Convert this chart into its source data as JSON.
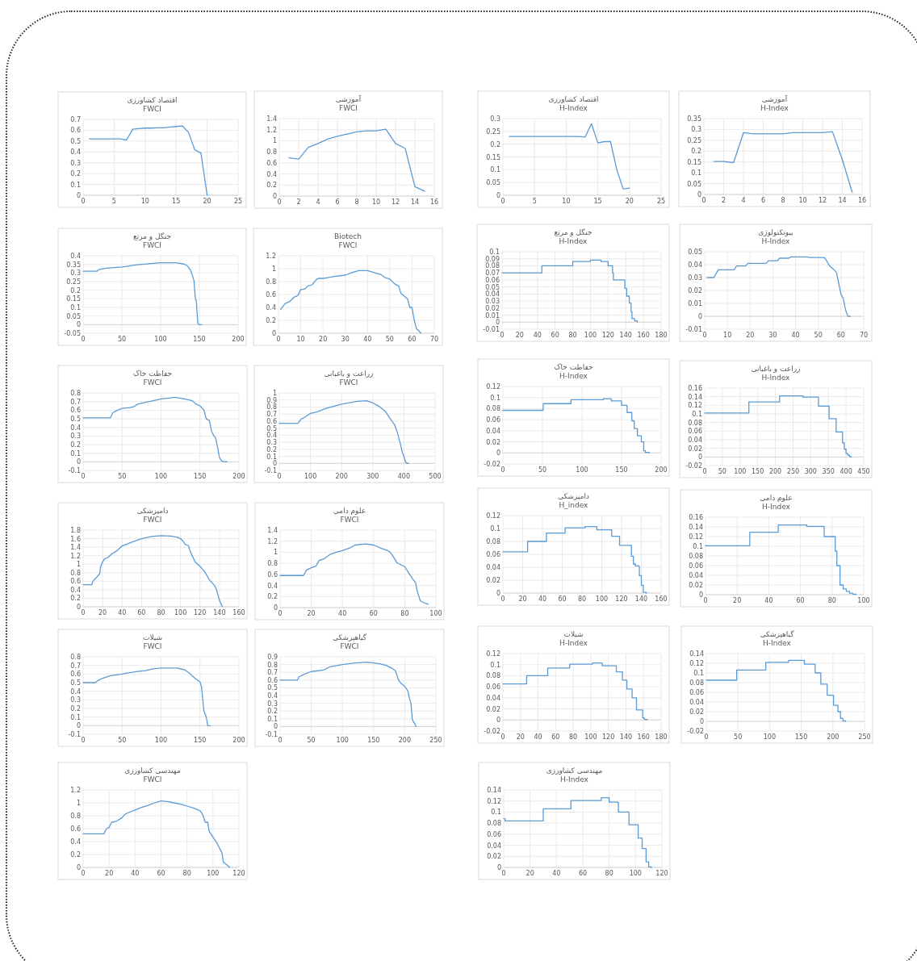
{
  "chart_data": [
    {
      "type": "line",
      "title": "اقتصاد کشاورزی",
      "subtitle": "FWCI",
      "x": [
        1,
        2,
        3,
        4,
        5,
        6,
        7,
        8,
        9,
        10,
        11,
        12,
        13,
        14,
        15,
        16,
        17,
        18,
        19,
        20
      ],
      "series": [
        {
          "color": "#5b9bd5",
          "values": [
            0.52,
            0.52,
            0.52,
            0.52,
            0.52,
            0.52,
            0.51,
            0.61,
            0.615,
            0.62,
            0.62,
            0.622,
            0.622,
            0.63,
            0.635,
            0.64,
            0.58,
            0.42,
            0.39,
            0
          ]
        }
      ],
      "xlim": [
        0,
        25
      ],
      "xticks": [
        0,
        5,
        10,
        15,
        20,
        25
      ],
      "ylim": [
        0,
        0.7
      ],
      "yticks": [
        0,
        0.1,
        0.2,
        0.3,
        0.4,
        0.5,
        0.6,
        0.7
      ],
      "grid": true
    },
    {
      "type": "line",
      "title": "آموزشی",
      "subtitle": "FWCI",
      "x": [
        1,
        2,
        3,
        4,
        5,
        6,
        7,
        8,
        9,
        10,
        11,
        12,
        13,
        14,
        15
      ],
      "series": [
        {
          "color": "#5b9bd5",
          "values": [
            0.69,
            0.67,
            0.88,
            0.95,
            1.03,
            1.08,
            1.12,
            1.16,
            1.18,
            1.18,
            1.21,
            0.95,
            0.86,
            0.17,
            0.09
          ]
        }
      ],
      "xlim": [
        0,
        16
      ],
      "xticks": [
        0,
        2,
        4,
        6,
        8,
        10,
        12,
        14,
        16
      ],
      "ylim": [
        0,
        1.4
      ],
      "yticks": [
        0,
        0.2,
        0.4,
        0.6,
        0.8,
        1,
        1.2,
        1.4
      ],
      "grid": true
    },
    {
      "type": "line",
      "title": "جنگل و مرتع",
      "subtitle": "FWCI",
      "x": [
        0,
        18,
        20,
        30,
        50,
        70,
        100,
        120,
        130,
        135,
        138,
        140,
        143,
        145,
        146,
        148,
        150,
        153
      ],
      "series": [
        {
          "color": "#5b9bd5",
          "values": [
            0.31,
            0.31,
            0.32,
            0.328,
            0.335,
            0.348,
            0.36,
            0.36,
            0.352,
            0.34,
            0.32,
            0.3,
            0.255,
            0.145,
            0.14,
            0.005,
            0,
            0
          ]
        }
      ],
      "xlim": [
        0,
        200
      ],
      "xticks": [
        0,
        50,
        100,
        150,
        200
      ],
      "ylim": [
        -0.05,
        0.4
      ],
      "yticks": [
        -0.05,
        0,
        0.05,
        0.1,
        0.15,
        0.2,
        0.25,
        0.3,
        0.35,
        0.4
      ],
      "grid": true
    },
    {
      "type": "line",
      "title": "Biotech",
      "subtitle": "FWCI",
      "x": [
        1,
        3,
        5,
        7,
        8,
        9,
        10,
        11,
        12,
        13,
        15,
        17,
        18,
        20,
        22,
        25,
        30,
        33,
        36,
        40,
        43,
        46,
        48,
        50,
        52,
        54,
        55,
        57,
        58,
        59,
        60,
        61,
        62,
        63,
        64
      ],
      "series": [
        {
          "color": "#5b9bd5",
          "values": [
            0.37,
            0.46,
            0.49,
            0.56,
            0.57,
            0.6,
            0.68,
            0.68,
            0.69,
            0.73,
            0.75,
            0.83,
            0.85,
            0.85,
            0.86,
            0.88,
            0.9,
            0.94,
            0.97,
            0.97,
            0.94,
            0.91,
            0.86,
            0.84,
            0.77,
            0.73,
            0.62,
            0.56,
            0.53,
            0.4,
            0.4,
            0.2,
            0.07,
            0.04,
            0
          ]
        }
      ],
      "xlim": [
        0,
        70
      ],
      "xticks": [
        0,
        10,
        20,
        30,
        40,
        50,
        60,
        70
      ],
      "ylim": [
        0,
        1.2
      ],
      "yticks": [
        0,
        0.2,
        0.4,
        0.6,
        0.8,
        1,
        1.2
      ],
      "grid": true
    },
    {
      "type": "line",
      "title": "حفاظت خاک",
      "subtitle": "FWCI",
      "x": [
        0,
        35,
        38,
        42,
        50,
        60,
        65,
        70,
        80,
        90,
        100,
        110,
        118,
        130,
        140,
        145,
        150,
        155,
        158,
        162,
        165,
        168,
        170,
        173,
        175,
        178,
        182,
        185
      ],
      "series": [
        {
          "color": "#5b9bd5",
          "values": [
            0.51,
            0.51,
            0.57,
            0.59,
            0.62,
            0.63,
            0.64,
            0.67,
            0.69,
            0.71,
            0.73,
            0.74,
            0.75,
            0.73,
            0.71,
            0.67,
            0.65,
            0.6,
            0.5,
            0.48,
            0.35,
            0.3,
            0.28,
            0.15,
            0.05,
            0.01,
            0,
            0
          ]
        }
      ],
      "xlim": [
        0,
        200
      ],
      "xticks": [
        0,
        50,
        100,
        150,
        200
      ],
      "ylim": [
        -0.1,
        0.8
      ],
      "yticks": [
        -0.1,
        0,
        0.1,
        0.2,
        0.3,
        0.4,
        0.5,
        0.6,
        0.7,
        0.8
      ],
      "grid": true
    },
    {
      "type": "line",
      "title": "زراعت و باغبانی",
      "subtitle": "FWCI",
      "x": [
        0,
        60,
        70,
        80,
        100,
        120,
        150,
        200,
        250,
        280,
        300,
        320,
        340,
        360,
        370,
        380,
        390,
        395,
        400,
        405,
        410,
        415
      ],
      "series": [
        {
          "color": "#5b9bd5",
          "values": [
            0.57,
            0.57,
            0.63,
            0.65,
            0.71,
            0.73,
            0.78,
            0.84,
            0.88,
            0.89,
            0.86,
            0.81,
            0.74,
            0.61,
            0.55,
            0.42,
            0.25,
            0.15,
            0.1,
            0.02,
            0,
            0
          ]
        }
      ],
      "xlim": [
        0,
        500
      ],
      "xticks": [
        0,
        100,
        200,
        300,
        400,
        500
      ],
      "ylim": [
        -0.1,
        1
      ],
      "yticks": [
        -0.1,
        0,
        0.1,
        0.2,
        0.3,
        0.4,
        0.5,
        0.6,
        0.7,
        0.8,
        0.9,
        1
      ],
      "grid": true
    },
    {
      "type": "line",
      "title": "دامپزشکی",
      "subtitle": "FWCI",
      "x": [
        0,
        9,
        10,
        15,
        17,
        18,
        20,
        22,
        25,
        30,
        35,
        40,
        45,
        50,
        60,
        70,
        80,
        90,
        97,
        100,
        103,
        105,
        108,
        110,
        115,
        120,
        125,
        130,
        135,
        137,
        140,
        143
      ],
      "series": [
        {
          "color": "#5b9bd5",
          "values": [
            0.52,
            0.52,
            0.6,
            0.72,
            0.78,
            0.95,
            1.05,
            1.13,
            1.15,
            1.25,
            1.32,
            1.43,
            1.47,
            1.52,
            1.6,
            1.65,
            1.67,
            1.66,
            1.63,
            1.6,
            1.53,
            1.46,
            1.44,
            1.3,
            1.05,
            0.95,
            0.82,
            0.62,
            0.5,
            0.4,
            0.15,
            0
          ]
        }
      ],
      "xlim": [
        0,
        160
      ],
      "xticks": [
        0,
        20,
        40,
        60,
        80,
        100,
        120,
        140,
        160
      ],
      "ylim": [
        0,
        1.8
      ],
      "yticks": [
        0,
        0.2,
        0.4,
        0.6,
        0.8,
        1,
        1.2,
        1.4,
        1.6,
        1.8
      ],
      "grid": true
    },
    {
      "type": "line",
      "title": "علوم دامی",
      "subtitle": "FWCI",
      "x": [
        0,
        15,
        17,
        20,
        23,
        25,
        28,
        32,
        36,
        40,
        45,
        48,
        55,
        60,
        65,
        70,
        72,
        75,
        80,
        82,
        85,
        87,
        88,
        90,
        93,
        95
      ],
      "series": [
        {
          "color": "#5b9bd5",
          "values": [
            0.58,
            0.58,
            0.68,
            0.72,
            0.75,
            0.85,
            0.88,
            0.96,
            1.0,
            1.03,
            1.08,
            1.13,
            1.15,
            1.13,
            1.07,
            1.02,
            0.95,
            0.81,
            0.74,
            0.65,
            0.52,
            0.45,
            0.3,
            0.12,
            0.08,
            0.06
          ]
        }
      ],
      "xlim": [
        0,
        100
      ],
      "xticks": [
        0,
        20,
        40,
        60,
        80,
        100
      ],
      "ylim": [
        0,
        1.4
      ],
      "yticks": [
        0,
        0.2,
        0.4,
        0.6,
        0.8,
        1,
        1.2,
        1.4
      ],
      "grid": true
    },
    {
      "type": "line",
      "title": "شیلات",
      "subtitle": "FWCI",
      "x": [
        0,
        16,
        18,
        25,
        35,
        50,
        55,
        70,
        80,
        90,
        100,
        110,
        120,
        130,
        135,
        140,
        145,
        150,
        152,
        155,
        156,
        158,
        160,
        163
      ],
      "series": [
        {
          "color": "#5b9bd5",
          "values": [
            0.5,
            0.5,
            0.52,
            0.55,
            0.58,
            0.6,
            0.61,
            0.63,
            0.64,
            0.66,
            0.67,
            0.67,
            0.67,
            0.65,
            0.62,
            0.58,
            0.54,
            0.51,
            0.45,
            0.17,
            0.15,
            0.1,
            0,
            0
          ]
        }
      ],
      "xlim": [
        0,
        200
      ],
      "xticks": [
        0,
        50,
        100,
        150,
        200
      ],
      "ylim": [
        -0.1,
        0.8
      ],
      "yticks": [
        -0.1,
        0,
        0.1,
        0.2,
        0.3,
        0.4,
        0.5,
        0.6,
        0.7,
        0.8
      ],
      "grid": true
    },
    {
      "type": "line",
      "title": "گیاهپزشکی",
      "subtitle": "FWCI",
      "x": [
        0,
        28,
        30,
        40,
        50,
        70,
        80,
        100,
        120,
        140,
        150,
        160,
        170,
        180,
        185,
        190,
        195,
        200,
        205,
        208,
        210,
        212,
        214,
        216,
        218
      ],
      "series": [
        {
          "color": "#5b9bd5",
          "values": [
            0.6,
            0.6,
            0.64,
            0.68,
            0.71,
            0.73,
            0.77,
            0.8,
            0.82,
            0.83,
            0.82,
            0.81,
            0.79,
            0.75,
            0.72,
            0.6,
            0.55,
            0.52,
            0.46,
            0.35,
            0.3,
            0.1,
            0.06,
            0.04,
            0
          ]
        }
      ],
      "xlim": [
        0,
        250
      ],
      "xticks": [
        0,
        50,
        100,
        150,
        200,
        250
      ],
      "ylim": [
        -0.1,
        0.9
      ],
      "yticks": [
        -0.1,
        0,
        0.1,
        0.2,
        0.3,
        0.4,
        0.5,
        0.6,
        0.7,
        0.8,
        0.9
      ],
      "grid": true
    },
    {
      "type": "line",
      "title": "مهندسی کشاورزی",
      "subtitle": "FWCI",
      "x": [
        0,
        16,
        18,
        20,
        22,
        25,
        30,
        32,
        35,
        40,
        45,
        50,
        55,
        60,
        65,
        70,
        75,
        80,
        85,
        90,
        92,
        94,
        96,
        97,
        100,
        103,
        105,
        107,
        108,
        110,
        113
      ],
      "series": [
        {
          "color": "#5b9bd5",
          "values": [
            0.52,
            0.52,
            0.6,
            0.62,
            0.7,
            0.71,
            0.77,
            0.82,
            0.85,
            0.89,
            0.93,
            0.96,
            1.0,
            1.03,
            1.02,
            1.0,
            0.98,
            0.95,
            0.92,
            0.88,
            0.82,
            0.7,
            0.7,
            0.56,
            0.47,
            0.38,
            0.3,
            0.22,
            0.08,
            0.05,
            0
          ]
        }
      ],
      "xlim": [
        0,
        120
      ],
      "xticks": [
        0,
        20,
        40,
        60,
        80,
        100,
        120
      ],
      "ylim": [
        0,
        1.2
      ],
      "yticks": [
        0,
        0.2,
        0.4,
        0.6,
        0.8,
        1,
        1.2
      ],
      "grid": true
    },
    {
      "type": "line",
      "title": "اقتصاد کشاورزی",
      "subtitle": "H-Index",
      "x": [
        1,
        2,
        3,
        4,
        5,
        6,
        7,
        8,
        9,
        10,
        11,
        12,
        13,
        14,
        15,
        16,
        17,
        18,
        19,
        20
      ],
      "series": [
        {
          "color": "#5b9bd5",
          "values": [
            0.23,
            0.23,
            0.23,
            0.23,
            0.23,
            0.23,
            0.23,
            0.23,
            0.23,
            0.23,
            0.23,
            0.23,
            0.228,
            0.28,
            0.205,
            0.21,
            0.21,
            0.1,
            0.025,
            0.028
          ]
        }
      ],
      "xlim": [
        0,
        25
      ],
      "xticks": [
        0,
        5,
        10,
        15,
        20,
        25
      ],
      "ylim": [
        0,
        0.3
      ],
      "yticks": [
        0,
        0.05,
        0.1,
        0.15,
        0.2,
        0.25,
        0.3
      ],
      "grid": true
    },
    {
      "type": "line",
      "title": "آموزشی",
      "subtitle": "H-Index",
      "x": [
        1,
        2,
        3,
        4,
        5,
        6,
        7,
        8,
        9,
        10,
        11,
        12,
        13,
        14,
        15
      ],
      "series": [
        {
          "color": "#5b9bd5",
          "values": [
            0.152,
            0.152,
            0.147,
            0.285,
            0.28,
            0.28,
            0.28,
            0.28,
            0.285,
            0.285,
            0.285,
            0.285,
            0.29,
            0.16,
            0.01
          ]
        }
      ],
      "xlim": [
        0,
        16
      ],
      "xticks": [
        0,
        2,
        4,
        6,
        8,
        10,
        12,
        14,
        16
      ],
      "ylim": [
        0,
        0.35
      ],
      "yticks": [
        0,
        0.05,
        0.1,
        0.15,
        0.2,
        0.25,
        0.3,
        0.35
      ],
      "grid": true
    },
    {
      "type": "step",
      "title": "جنگل و مرتع",
      "subtitle": "H-Index",
      "x": [
        0,
        45,
        80,
        100,
        112,
        120,
        125,
        126,
        139,
        141,
        144,
        146,
        147,
        150,
        153
      ],
      "series": [
        {
          "color": "#5b9bd5",
          "values": [
            0.07,
            0.08,
            0.086,
            0.088,
            0.086,
            0.08,
            0.07,
            0.06,
            0.048,
            0.037,
            0.027,
            0.015,
            0.005,
            0.002,
            0
          ]
        }
      ],
      "xlim": [
        0,
        180
      ],
      "xticks": [
        0,
        20,
        40,
        60,
        80,
        100,
        120,
        140,
        160,
        180
      ],
      "ylim": [
        -0.01,
        0.1
      ],
      "yticks": [
        -0.01,
        0,
        0.01,
        0.02,
        0.03,
        0.04,
        0.05,
        0.06,
        0.07,
        0.08,
        0.09,
        0.1
      ],
      "grid": true
    },
    {
      "type": "line",
      "title": "بیوتکنولوژی",
      "subtitle": "H-Index",
      "x": [
        1,
        4,
        6,
        13,
        14,
        18,
        19,
        27,
        28,
        32,
        33,
        37,
        38,
        45,
        46,
        52,
        53,
        55,
        57,
        58,
        60,
        61,
        62,
        63,
        64
      ],
      "series": [
        {
          "color": "#5b9bd5",
          "values": [
            0.03,
            0.03,
            0.036,
            0.036,
            0.039,
            0.039,
            0.041,
            0.041,
            0.043,
            0.043,
            0.045,
            0.045,
            0.046,
            0.046,
            0.0455,
            0.0455,
            0.045,
            0.039,
            0.036,
            0.034,
            0.017,
            0.014,
            0.005,
            0,
            0
          ]
        }
      ],
      "xlim": [
        0,
        70
      ],
      "xticks": [
        0,
        10,
        20,
        30,
        40,
        50,
        60,
        70
      ],
      "ylim": [
        -0.01,
        0.05
      ],
      "yticks": [
        -0.01,
        0,
        0.01,
        0.02,
        0.03,
        0.04,
        0.05
      ],
      "grid": true
    },
    {
      "type": "step",
      "title": "حفاظت خاک",
      "subtitle": "H-Index",
      "x": [
        0,
        51,
        86,
        127,
        137,
        150,
        157,
        163,
        166,
        170,
        175,
        178,
        180,
        185
      ],
      "series": [
        {
          "color": "#5b9bd5",
          "values": [
            0.077,
            0.089,
            0.096,
            0.098,
            0.094,
            0.086,
            0.073,
            0.058,
            0.044,
            0.031,
            0.02,
            0.004,
            0.001,
            0
          ]
        }
      ],
      "xlim": [
        0,
        200
      ],
      "xticks": [
        0,
        50,
        100,
        150,
        200
      ],
      "ylim": [
        -0.02,
        0.12
      ],
      "yticks": [
        -0.02,
        0,
        0.02,
        0.04,
        0.06,
        0.08,
        0.1,
        0.12
      ],
      "grid": true
    },
    {
      "type": "step",
      "title": "زراعت و باغبانی",
      "subtitle": "H-Index",
      "x": [
        0,
        125,
        212,
        278,
        322,
        352,
        372,
        390,
        395,
        400,
        405,
        410,
        415
      ],
      "series": [
        {
          "color": "#5b9bd5",
          "values": [
            0.102,
            0.128,
            0.142,
            0.139,
            0.118,
            0.089,
            0.058,
            0.033,
            0.018,
            0.008,
            0.004,
            0.001,
            0
          ]
        }
      ],
      "xlim": [
        0,
        450
      ],
      "xticks": [
        0,
        50,
        100,
        150,
        200,
        250,
        300,
        350,
        400,
        450
      ],
      "ylim": [
        -0.02,
        0.16
      ],
      "yticks": [
        -0.02,
        0,
        0.02,
        0.04,
        0.06,
        0.08,
        0.1,
        0.12,
        0.14,
        0.16
      ],
      "grid": true
    },
    {
      "type": "step",
      "title": "دامپزشکی",
      "subtitle": "H_index",
      "x": [
        0,
        25,
        44,
        63,
        83,
        95,
        110,
        118,
        130,
        132,
        134,
        138,
        140,
        142,
        145
      ],
      "series": [
        {
          "color": "#5b9bd5",
          "values": [
            0.064,
            0.08,
            0.093,
            0.101,
            0.103,
            0.098,
            0.088,
            0.074,
            0.057,
            0.045,
            0.042,
            0.027,
            0.012,
            0.001,
            0
          ]
        }
      ],
      "xlim": [
        0,
        160
      ],
      "xticks": [
        0,
        20,
        40,
        60,
        80,
        100,
        120,
        140,
        160
      ],
      "ylim": [
        0,
        0.12
      ],
      "yticks": [
        0,
        0.02,
        0.04,
        0.06,
        0.08,
        0.1,
        0.12
      ],
      "grid": true
    },
    {
      "type": "step",
      "title": "علوم دامی",
      "subtitle": "H-Index",
      "x": [
        0,
        28,
        46,
        64,
        75,
        82,
        83,
        85,
        87,
        89,
        91,
        93,
        95
      ],
      "series": [
        {
          "color": "#5b9bd5",
          "values": [
            0.101,
            0.129,
            0.144,
            0.141,
            0.12,
            0.09,
            0.06,
            0.02,
            0.012,
            0.007,
            0.003,
            0.001,
            0
          ]
        }
      ],
      "xlim": [
        0,
        100
      ],
      "xticks": [
        0,
        20,
        40,
        60,
        80,
        100
      ],
      "ylim": [
        0,
        0.16
      ],
      "yticks": [
        0,
        0.02,
        0.04,
        0.06,
        0.08,
        0.1,
        0.12,
        0.14,
        0.16
      ],
      "grid": true
    },
    {
      "type": "step",
      "title": "شیلات",
      "subtitle": "H-Index",
      "x": [
        0,
        27,
        51,
        76,
        102,
        113,
        129,
        136,
        141,
        147,
        152,
        159,
        161,
        164
      ],
      "series": [
        {
          "color": "#5b9bd5",
          "values": [
            0.065,
            0.08,
            0.094,
            0.101,
            0.103,
            0.098,
            0.087,
            0.072,
            0.056,
            0.04,
            0.018,
            0.004,
            0.001,
            0
          ]
        }
      ],
      "xlim": [
        0,
        180
      ],
      "xticks": [
        0,
        20,
        40,
        60,
        80,
        100,
        120,
        140,
        160,
        180
      ],
      "ylim": [
        -0.02,
        0.12
      ],
      "yticks": [
        -0.02,
        0,
        0.02,
        0.04,
        0.06,
        0.08,
        0.1,
        0.12
      ],
      "grid": true
    },
    {
      "type": "step",
      "title": "گیاهپزشکی",
      "subtitle": "H-Index",
      "x": [
        0,
        48,
        94,
        130,
        155,
        172,
        181,
        191,
        201,
        208,
        212,
        216,
        220
      ],
      "series": [
        {
          "color": "#5b9bd5",
          "values": [
            0.085,
            0.106,
            0.122,
            0.126,
            0.118,
            0.1,
            0.077,
            0.054,
            0.033,
            0.02,
            0.006,
            0.001,
            0
          ]
        }
      ],
      "xlim": [
        0,
        250
      ],
      "xticks": [
        0,
        50,
        100,
        150,
        200,
        250
      ],
      "ylim": [
        -0.02,
        0.14
      ],
      "yticks": [
        -0.02,
        0,
        0.02,
        0.04,
        0.06,
        0.08,
        0.1,
        0.12,
        0.14
      ],
      "grid": true
    },
    {
      "type": "step",
      "title": "مهندسی کشاورزی",
      "subtitle": "H-Index",
      "x": [
        0,
        1,
        30,
        51,
        74,
        80,
        87,
        95,
        102,
        105,
        108,
        110,
        112
      ],
      "series": [
        {
          "color": "#5b9bd5",
          "values": [
            0.088,
            0.084,
            0.106,
            0.121,
            0.126,
            0.118,
            0.1,
            0.077,
            0.053,
            0.034,
            0.01,
            0.001,
            0
          ]
        }
      ],
      "xlim": [
        0,
        120
      ],
      "xticks": [
        0,
        20,
        40,
        60,
        80,
        100,
        120
      ],
      "ylim": [
        0,
        0.14
      ],
      "yticks": [
        0,
        0.02,
        0.04,
        0.06,
        0.08,
        0.1,
        0.12,
        0.14
      ],
      "grid": true
    }
  ]
}
